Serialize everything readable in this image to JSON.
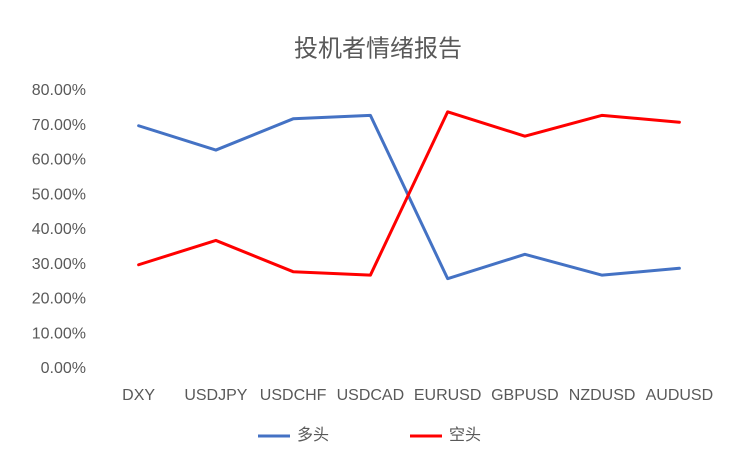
{
  "chart_data": {
    "type": "line",
    "title": "投机者情绪报告",
    "categories": [
      "DXY",
      "USDJPY",
      "USDCHF",
      "USDCAD",
      "EURUSD",
      "GBPUSD",
      "NZDUSD",
      "AUDUSD"
    ],
    "series": [
      {
        "name": "多头",
        "color": "#4472c4",
        "values": [
          70,
          63,
          72,
          73,
          26,
          33,
          27,
          29
        ]
      },
      {
        "name": "空头",
        "color": "#ff0000",
        "values": [
          30,
          37,
          28,
          27,
          74,
          67,
          73,
          71
        ]
      }
    ],
    "ylim": [
      0,
      80
    ],
    "yticks": [
      {
        "value": 0,
        "label": "0.00%"
      },
      {
        "value": 10,
        "label": "10.00%"
      },
      {
        "value": 20,
        "label": "20.00%"
      },
      {
        "value": 30,
        "label": "30.00%"
      },
      {
        "value": 40,
        "label": "40.00%"
      },
      {
        "value": 50,
        "label": "50.00%"
      },
      {
        "value": 60,
        "label": "60.00%"
      },
      {
        "value": 70,
        "label": "70.00%"
      },
      {
        "value": 80,
        "label": "80.00%"
      }
    ],
    "grid": false,
    "legend": "bottom"
  }
}
